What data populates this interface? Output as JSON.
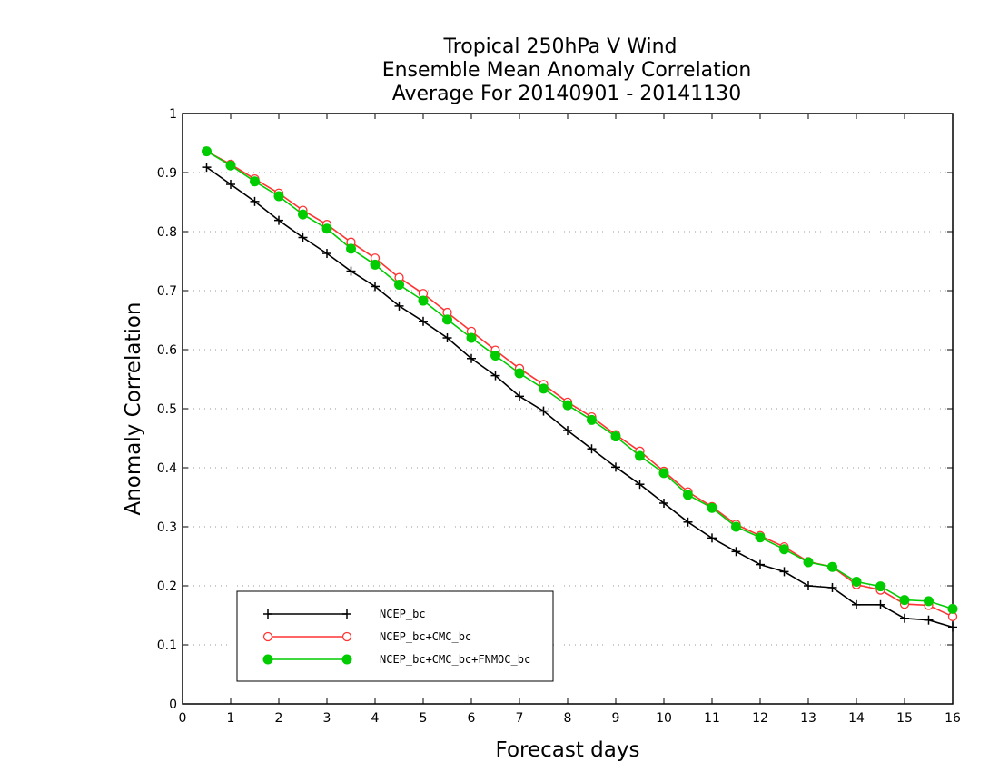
{
  "chart_data": {
    "type": "line",
    "title": [
      "Tropical 250hPa V Wind",
      "Ensemble Mean Anomaly Correlation",
      "Average For 20140901 - 20141130"
    ],
    "xlabel": "Forecast days",
    "ylabel": "Anomaly Correlation",
    "xlim": [
      0,
      16
    ],
    "ylim": [
      0,
      1
    ],
    "xticks": [
      "0",
      "1",
      "2",
      "3",
      "4",
      "5",
      "6",
      "7",
      "8",
      "9",
      "10",
      "11",
      "12",
      "13",
      "14",
      "15",
      "16"
    ],
    "yticks": [
      "0",
      "0.1",
      "0.2",
      "0.3",
      "0.4",
      "0.5",
      "0.6",
      "0.7",
      "0.8",
      "0.9",
      "1"
    ],
    "grid": "horizontal dotted",
    "legend_position": "bottom-left",
    "x": [
      0.5,
      1,
      1.5,
      2,
      2.5,
      3,
      3.5,
      4,
      4.5,
      5,
      5.5,
      6,
      6.5,
      7,
      7.5,
      8,
      8.5,
      9,
      9.5,
      10,
      10.5,
      11,
      11.5,
      12,
      12.5,
      13,
      13.5,
      14,
      14.5,
      15,
      15.5,
      16
    ],
    "series": [
      {
        "name": "NCEP_bc",
        "color": "#000000",
        "marker": "plus",
        "values": [
          0.909,
          0.88,
          0.851,
          0.819,
          0.79,
          0.763,
          0.733,
          0.707,
          0.674,
          0.648,
          0.62,
          0.585,
          0.556,
          0.521,
          0.496,
          0.463,
          0.432,
          0.401,
          0.372,
          0.34,
          0.308,
          0.281,
          0.258,
          0.236,
          0.224,
          0.2,
          0.197,
          0.168,
          0.168,
          0.145,
          0.142,
          0.13
        ]
      },
      {
        "name": "NCEP_bc+CMC_bc",
        "color": "#ff3333",
        "marker": "open-circle",
        "values": [
          0.936,
          0.914,
          0.889,
          0.865,
          0.836,
          0.812,
          0.782,
          0.755,
          0.722,
          0.695,
          0.663,
          0.631,
          0.599,
          0.568,
          0.541,
          0.511,
          0.486,
          0.456,
          0.428,
          0.394,
          0.359,
          0.334,
          0.304,
          0.285,
          0.266,
          0.241,
          0.232,
          0.202,
          0.193,
          0.169,
          0.167,
          0.148
        ]
      },
      {
        "name": "NCEP_bc+CMC_bc+FNMOC_bc",
        "color": "#00cc00",
        "marker": "filled-circle",
        "values": [
          0.936,
          0.912,
          0.885,
          0.86,
          0.829,
          0.805,
          0.771,
          0.744,
          0.71,
          0.683,
          0.651,
          0.62,
          0.59,
          0.56,
          0.534,
          0.506,
          0.481,
          0.453,
          0.42,
          0.391,
          0.354,
          0.332,
          0.3,
          0.282,
          0.262,
          0.24,
          0.232,
          0.207,
          0.199,
          0.176,
          0.174,
          0.161
        ]
      }
    ]
  }
}
